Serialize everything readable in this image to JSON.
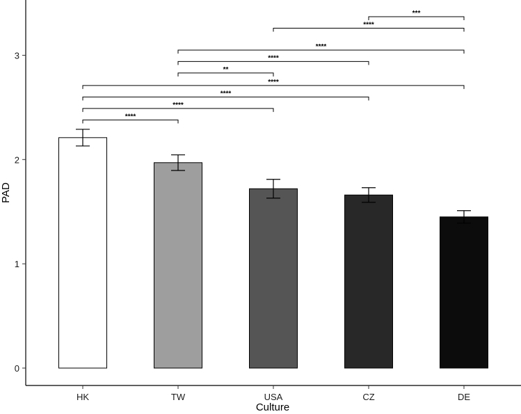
{
  "chart_data": {
    "type": "bar",
    "xlabel": "Culture",
    "ylabel": "PAD",
    "ylim": [
      0,
      3.45
    ],
    "yticks": [
      "0",
      "1",
      "2",
      "3"
    ],
    "categories": [
      "HK",
      "TW",
      "USA",
      "CZ",
      "DE"
    ],
    "values": [
      2.21,
      1.97,
      1.72,
      1.66,
      1.45
    ],
    "errors": [
      0.08,
      0.075,
      0.09,
      0.07,
      0.06
    ],
    "bar_colors": [
      "#ffffff",
      "#9e9e9e",
      "#555555",
      "#282828",
      "#0c0c0c"
    ],
    "grid": false,
    "legend": "none",
    "comparisons": [
      {
        "from": "CZ",
        "to": "DE",
        "level": 3.37,
        "label": "***"
      },
      {
        "from": "USA",
        "to": "DE",
        "level": 3.26,
        "label": "****"
      },
      {
        "from": "TW",
        "to": "DE",
        "level": 3.05,
        "label": "****"
      },
      {
        "from": "TW",
        "to": "CZ",
        "level": 2.94,
        "label": "****"
      },
      {
        "from": "TW",
        "to": "USA",
        "level": 2.83,
        "label": "**"
      },
      {
        "from": "HK",
        "to": "DE",
        "level": 2.71,
        "label": "****"
      },
      {
        "from": "HK",
        "to": "CZ",
        "level": 2.6,
        "label": "****"
      },
      {
        "from": "HK",
        "to": "USA",
        "level": 2.49,
        "label": "****"
      },
      {
        "from": "HK",
        "to": "TW",
        "level": 2.38,
        "label": "****"
      }
    ]
  }
}
